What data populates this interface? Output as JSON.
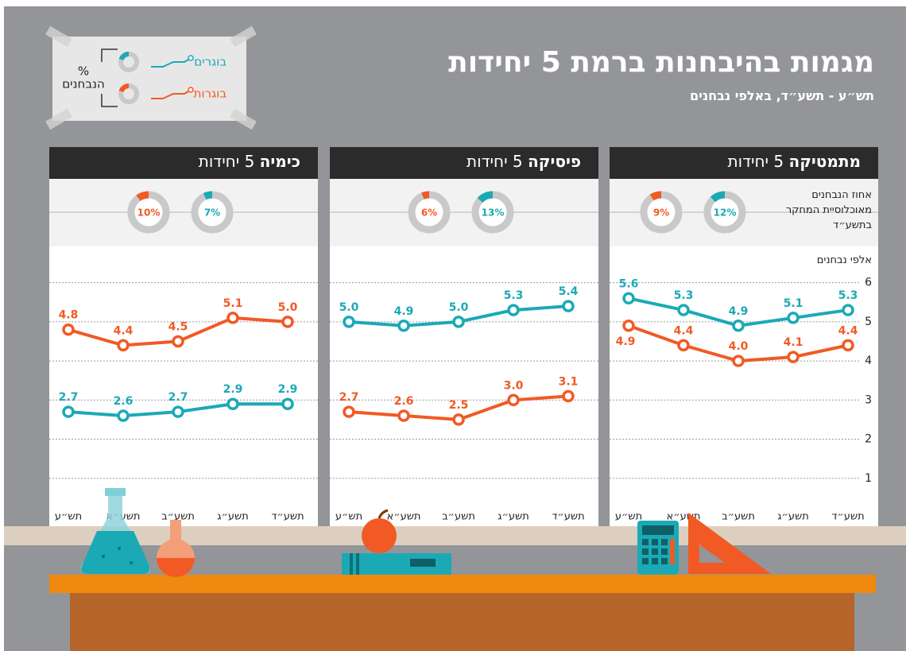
{
  "header": {
    "title": "מגמות בהיבחנות ברמת 5 יחידות",
    "subtitle": "תש״ע - תשע״ד, באלפי נבחנים"
  },
  "legend": {
    "note": [
      "%",
      "הנבחנים"
    ],
    "series": [
      {
        "name": "בוגרים",
        "color": "#1ba9b6"
      },
      {
        "name": "בוגרות",
        "color": "#f15a24"
      }
    ]
  },
  "chart_data": [
    {
      "type": "line",
      "subject": "מתמטיקה",
      "level": "5 יחידות",
      "share_note": [
        "אחוז הנבחנים",
        "מאוכלוסיית המחקר",
        "בתשע״ד"
      ],
      "y_label": "אלפי נבחנים",
      "categories": [
        "תש״ע",
        "תשע״א",
        "תשע״ב",
        "תשע״ג",
        "תשע״ד"
      ],
      "series": [
        {
          "values": [
            5.6,
            5.3,
            4.9,
            5.1,
            5.3
          ],
          "value_labels": [
            "5.6",
            "5.3",
            "4.9",
            "5.1",
            "5.3"
          ],
          "share": 12,
          "share_label": "12%"
        },
        {
          "values": [
            4.9,
            4.4,
            4.0,
            4.1,
            4.4
          ],
          "value_labels": [
            "4.9",
            "4.4",
            "4.0",
            "4.1",
            "4.4"
          ],
          "share": 9,
          "share_label": "9%"
        }
      ],
      "ylim": [
        0,
        6.5
      ],
      "yticks": [
        1,
        2,
        3,
        4,
        5,
        6
      ],
      "ytick_labels": true,
      "grid": true
    },
    {
      "type": "line",
      "subject": "פיסיקה",
      "level": "5 יחידות",
      "categories": [
        "תש״ע",
        "תשע״א",
        "תשע״ב",
        "תשע״ג",
        "תשע״ד"
      ],
      "series": [
        {
          "values": [
            5.0,
            4.9,
            5.0,
            5.3,
            5.4
          ],
          "value_labels": [
            "5.0",
            "4.9",
            "5.0",
            "5.3",
            "5.4"
          ],
          "share": 13,
          "share_label": "13%"
        },
        {
          "values": [
            2.7,
            2.6,
            2.5,
            3.0,
            3.1
          ],
          "value_labels": [
            "2.7",
            "2.6",
            "2.5",
            "3.0",
            "3.1"
          ],
          "share": 6,
          "share_label": "6%"
        }
      ],
      "ylim": [
        0,
        6.5
      ],
      "yticks": [
        1,
        2,
        3,
        4,
        5,
        6
      ],
      "ytick_labels": false,
      "grid": true
    },
    {
      "type": "line",
      "subject": "כימיה",
      "level": "5 יחידות",
      "categories": [
        "תש״ע",
        "תשע״א",
        "תשע״ב",
        "תשע״ג",
        "תשע״ד"
      ],
      "series": [
        {
          "values": [
            2.7,
            2.6,
            2.7,
            2.9,
            2.9
          ],
          "value_labels": [
            "2.7",
            "2.6",
            "2.7",
            "2.9",
            "2.9"
          ],
          "share": 7,
          "share_label": "7%"
        },
        {
          "values": [
            4.8,
            4.4,
            4.5,
            5.1,
            5.0
          ],
          "value_labels": [
            "4.8",
            "4.4",
            "4.5",
            "5.1",
            "5.0"
          ],
          "share": 10,
          "share_label": "10%"
        }
      ],
      "ylim": [
        0,
        6.5
      ],
      "yticks": [
        1,
        2,
        3,
        4,
        5,
        6
      ],
      "ytick_labels": false,
      "grid": true
    }
  ]
}
